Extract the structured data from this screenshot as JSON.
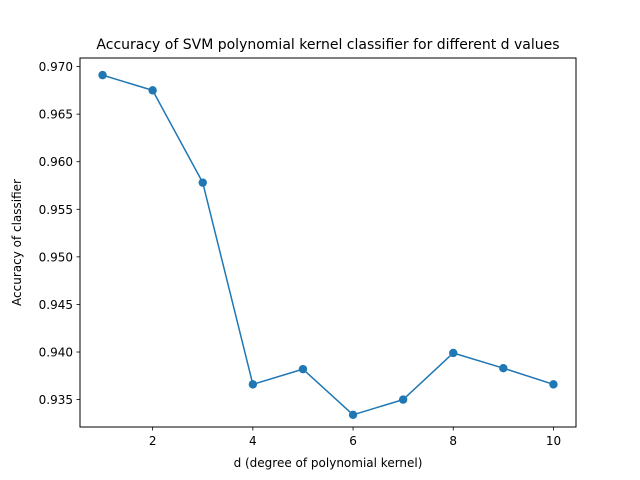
{
  "chart_data": {
    "type": "line",
    "title": "Accuracy of SVM polynomial kernel classifier for different d values",
    "xlabel": "d (degree of polynomial kernel)",
    "ylabel": "Accuracy of classifier",
    "x": [
      1,
      2,
      3,
      4,
      5,
      6,
      7,
      8,
      9,
      10
    ],
    "series": [
      {
        "values": [
          0.9691,
          0.9675,
          0.9578,
          0.9366,
          0.9382,
          0.9334,
          0.935,
          0.9399,
          0.9383,
          0.9366
        ],
        "color": "#1f77b4",
        "marker": "circle"
      }
    ],
    "xlim": [
      0.55,
      10.45
    ],
    "ylim": [
      0.93212,
      0.9709
    ],
    "xticks": [
      2,
      4,
      6,
      8,
      10
    ],
    "yticks": [
      0.935,
      0.94,
      0.945,
      0.95,
      0.955,
      0.96,
      0.965,
      0.97
    ],
    "ytick_labels": [
      "0.935",
      "0.940",
      "0.945",
      "0.950",
      "0.955",
      "0.960",
      "0.965",
      "0.970"
    ],
    "grid": false,
    "legend": false
  }
}
